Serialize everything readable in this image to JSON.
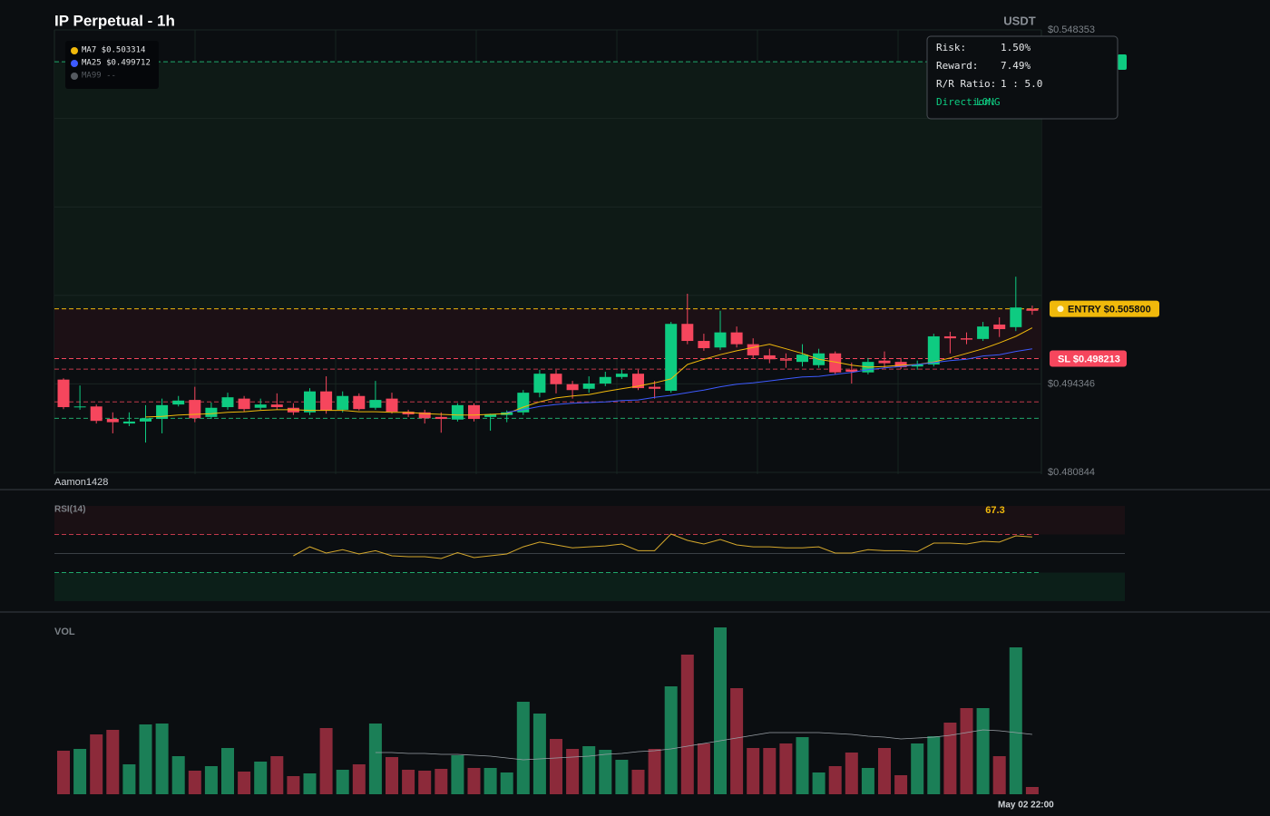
{
  "chart_data": [
    {
      "type": "candlestick",
      "title": "IP Perpetual - 1h",
      "unit": "USDT",
      "watermark": "Aamon1428",
      "ylim": [
        0.480844,
        0.548353
      ],
      "yticks": [
        {
          "value": 0.548353,
          "label": "$0.548353"
        },
        {
          "value": 0.494346,
          "label": "$0.494346"
        },
        {
          "value": 0.480844,
          "label": "$0.480844"
        }
      ],
      "ygrid": [
        0.534851,
        0.521348,
        0.507849
      ],
      "up_color": "#0ecb81",
      "down_color": "#f6465d",
      "open": [
        0.495,
        0.4908,
        0.4909,
        0.489,
        0.4883,
        0.4886,
        0.489,
        0.4912,
        0.4919,
        0.4893,
        0.4908,
        0.4921,
        0.4907,
        0.4912,
        0.4907,
        0.49,
        0.4932,
        0.4904,
        0.4925,
        0.4907,
        0.4921,
        0.4901,
        0.49,
        0.4893,
        0.4889,
        0.4911,
        0.4893,
        0.4896,
        0.49,
        0.493,
        0.4959,
        0.4943,
        0.4936,
        0.4944,
        0.4954,
        0.4959,
        0.4939,
        0.4933,
        0.5035,
        0.5009,
        0.4999,
        0.5022,
        0.5004,
        0.4987,
        0.4981,
        0.4977,
        0.4972,
        0.499,
        0.4965,
        0.4961,
        0.4979,
        0.4977,
        0.497,
        0.4973,
        0.5016,
        0.5013,
        0.5012,
        0.5034,
        0.503,
        0.5058
      ],
      "high": [
        0.4952,
        0.4941,
        0.4912,
        0.49,
        0.49,
        0.4911,
        0.4921,
        0.4925,
        0.4939,
        0.4915,
        0.493,
        0.4925,
        0.4921,
        0.4929,
        0.4914,
        0.4937,
        0.4955,
        0.4932,
        0.4929,
        0.4948,
        0.493,
        0.4904,
        0.4904,
        0.49,
        0.4914,
        0.4914,
        0.4898,
        0.4903,
        0.4934,
        0.4965,
        0.4965,
        0.4948,
        0.4955,
        0.4962,
        0.4965,
        0.4965,
        0.4948,
        0.5038,
        0.5081,
        0.502,
        0.5055,
        0.5031,
        0.5013,
        0.4997,
        0.499,
        0.5004,
        0.4997,
        0.4993,
        0.4976,
        0.4983,
        0.4993,
        0.4983,
        0.4979,
        0.502,
        0.5023,
        0.5022,
        0.5038,
        0.5045,
        0.5107,
        0.5063
      ],
      "low": [
        0.4905,
        0.4904,
        0.4883,
        0.4868,
        0.4879,
        0.4854,
        0.4868,
        0.4909,
        0.4885,
        0.489,
        0.4904,
        0.4901,
        0.4904,
        0.4904,
        0.4896,
        0.4896,
        0.4898,
        0.49,
        0.4903,
        0.4904,
        0.4898,
        0.4893,
        0.4883,
        0.4869,
        0.4886,
        0.4886,
        0.4872,
        0.4885,
        0.4896,
        0.4923,
        0.4929,
        0.4921,
        0.493,
        0.494,
        0.4951,
        0.4934,
        0.4921,
        0.493,
        0.5004,
        0.4994,
        0.4995,
        0.4999,
        0.4983,
        0.4975,
        0.4968,
        0.497,
        0.4968,
        0.4958,
        0.4944,
        0.4958,
        0.4968,
        0.4966,
        0.4965,
        0.497,
        0.499,
        0.5004,
        0.5009,
        0.5015,
        0.5024,
        0.5049
      ],
      "close": [
        0.4908,
        0.4909,
        0.4887,
        0.4885,
        0.4886,
        0.4891,
        0.4911,
        0.4918,
        0.4891,
        0.4907,
        0.4923,
        0.4905,
        0.4912,
        0.4908,
        0.49,
        0.4932,
        0.4903,
        0.4925,
        0.4905,
        0.4919,
        0.4901,
        0.4897,
        0.4891,
        0.489,
        0.4911,
        0.489,
        0.4897,
        0.49,
        0.493,
        0.4959,
        0.4943,
        0.4934,
        0.4944,
        0.4954,
        0.4959,
        0.4937,
        0.4936,
        0.5035,
        0.5009,
        0.4998,
        0.5022,
        0.5004,
        0.4987,
        0.4981,
        0.4979,
        0.4988,
        0.499,
        0.4961,
        0.4962,
        0.4977,
        0.4975,
        0.4969,
        0.4973,
        0.5016,
        0.5013,
        0.5011,
        0.5031,
        0.5027,
        0.506,
        0.5055
      ],
      "series": [
        {
          "color": "#f0b90b",
          "values": [
            null,
            null,
            null,
            null,
            null,
            0.4893,
            0.4894,
            0.4896,
            0.4897,
            0.4898,
            0.49,
            0.4901,
            0.4903,
            0.4904,
            0.4904,
            0.4903,
            0.4903,
            0.4903,
            0.4901,
            0.4901,
            0.49,
            0.49,
            0.4898,
            0.4897,
            0.4896,
            0.4896,
            0.4897,
            0.4898,
            0.4908,
            0.4916,
            0.4922,
            0.4925,
            0.4927,
            0.4932,
            0.4936,
            0.494,
            0.4945,
            0.4951,
            0.4973,
            0.4981,
            0.4988,
            0.4994,
            0.4999,
            0.5004,
            0.4997,
            0.499,
            0.4981,
            0.4977,
            0.4972,
            0.4969,
            0.497,
            0.4972,
            0.4973,
            0.4977,
            0.4983,
            0.499,
            0.4997,
            0.5006,
            0.5016,
            0.5029
          ]
        },
        {
          "color": "#3d5afe",
          "values": [
            null,
            null,
            null,
            null,
            null,
            null,
            null,
            null,
            null,
            null,
            null,
            null,
            null,
            null,
            null,
            null,
            null,
            null,
            null,
            null,
            null,
            null,
            null,
            null,
            null,
            null,
            null,
            0.49,
            0.4904,
            0.4909,
            0.4912,
            0.4914,
            0.4915,
            0.4916,
            0.4918,
            0.4919,
            0.4923,
            0.4926,
            0.493,
            0.4934,
            0.4939,
            0.4943,
            0.4945,
            0.4948,
            0.4951,
            0.4954,
            0.4955,
            0.4958,
            0.4961,
            0.4965,
            0.4968,
            0.497,
            0.4973,
            0.4976,
            0.4979,
            0.4981,
            0.4986,
            0.4988,
            0.4993,
            0.4997
          ]
        }
      ],
      "legend": [
        {
          "text": "MA7 $0.503314",
          "color": "#f0b90b"
        },
        {
          "text": "MA25 $0.499712",
          "color": "#3d5afe"
        },
        {
          "text": "MA99 --",
          "color": "#555a60"
        }
      ],
      "entry": {
        "label": "ENTRY $0.505800",
        "value": 0.5058,
        "color": "#f0b90b"
      },
      "stop": {
        "label": "SL $0.498213",
        "value": 0.498213,
        "color": "#f6465d"
      },
      "hlines": [
        {
          "value": 0.5435,
          "color": "#1fa86b"
        },
        {
          "value": 0.4966,
          "color": "#c0394b"
        },
        {
          "value": 0.4916,
          "color": "#c0394b"
        },
        {
          "value": 0.4891,
          "color": "#1fa86b"
        }
      ],
      "info": [
        [
          "Risk:",
          "1.50%"
        ],
        [
          "Reward:",
          "7.49%"
        ],
        [
          "R/R Ratio:",
          "1 : 5.0"
        ],
        [
          "Direction:",
          "LONG"
        ]
      ]
    },
    {
      "type": "line",
      "title": "RSI(14)",
      "ylim": [
        0,
        100
      ],
      "levels": [
        70,
        50,
        30
      ],
      "color": "#d4a72c",
      "values": [
        null,
        null,
        null,
        null,
        null,
        null,
        null,
        null,
        null,
        null,
        null,
        null,
        null,
        null,
        47.6,
        57,
        50.5,
        54,
        49.5,
        53,
        47.6,
        46.7,
        46.7,
        44.8,
        51,
        45.7,
        47.6,
        49.5,
        57,
        62,
        59,
        56,
        57,
        58,
        60,
        53,
        53,
        70.5,
        63.8,
        60,
        64.8,
        59,
        57,
        57,
        56,
        56,
        57,
        50.5,
        50.5,
        54,
        53,
        53,
        52,
        61,
        61,
        60,
        62.9,
        62,
        68.6,
        67.3
      ]
    },
    {
      "type": "bar",
      "title": "VOL",
      "ylim": [
        0,
        190
      ],
      "up_color": "#1b7f57",
      "down_color": "#8c2a3a",
      "ma_color": "#9aa0a6",
      "categories": [
        null,
        null,
        null,
        null,
        null,
        null,
        null,
        null,
        null,
        null,
        null,
        null,
        null,
        null,
        null,
        null,
        null,
        null,
        null,
        null,
        null,
        null,
        null,
        null,
        null,
        null,
        null,
        null,
        null,
        null,
        null,
        null,
        null,
        null,
        null,
        null,
        null,
        null,
        null,
        null,
        null,
        null,
        null,
        null,
        null,
        null,
        null,
        null,
        null,
        null,
        null,
        null,
        null,
        null,
        null,
        null,
        null,
        null,
        null,
        "May 02 22:00"
      ],
      "values": [
        48,
        50,
        66,
        71,
        33,
        77,
        78,
        42,
        26,
        31,
        51,
        25,
        36,
        42,
        20,
        23,
        73,
        27,
        33,
        78,
        41,
        27,
        26,
        28,
        43,
        29,
        29,
        24,
        102,
        89,
        61,
        50,
        53,
        49,
        38,
        27,
        50,
        119,
        154,
        56,
        184,
        117,
        51,
        51,
        56,
        63,
        24,
        31,
        46,
        29,
        51,
        21,
        56,
        64,
        79,
        95,
        95,
        42,
        162,
        8
      ],
      "ma": [
        null,
        null,
        null,
        null,
        null,
        null,
        null,
        null,
        null,
        null,
        null,
        null,
        null,
        null,
        null,
        null,
        null,
        null,
        null,
        46,
        46,
        45,
        45,
        44,
        44,
        43,
        42,
        40,
        38,
        39,
        40,
        41,
        42,
        44,
        45,
        47,
        48,
        50,
        53,
        56,
        59,
        62,
        65,
        68,
        68,
        68,
        68,
        67,
        66,
        64,
        63,
        61,
        62,
        63,
        65,
        68,
        71,
        70,
        68,
        66
      ]
    }
  ]
}
